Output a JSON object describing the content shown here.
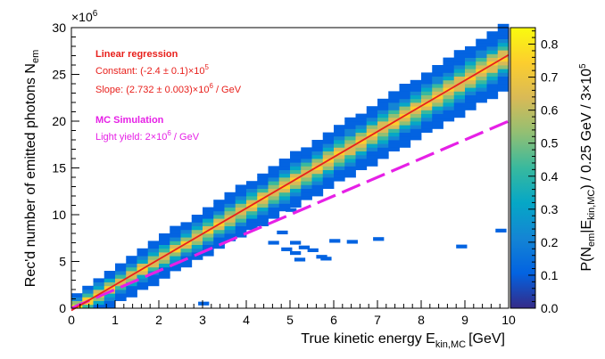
{
  "chart_data": {
    "type": "heatmap",
    "title": "",
    "xlabel": "True kinetic energy E",
    "xlabel_sub": "kin,MC",
    "xlabel_unit": "[GeV]",
    "ylabel": "Rec'd number of emitted photons N",
    "ylabel_sub": "em",
    "y_multiplier": "×10",
    "y_multiplier_exp": "6",
    "xlim": [
      0,
      10
    ],
    "ylim": [
      0,
      30
    ],
    "x_ticks": [
      "0",
      "1",
      "2",
      "3",
      "4",
      "5",
      "6",
      "7",
      "8",
      "9",
      "10"
    ],
    "y_ticks": [
      "0",
      "5",
      "10",
      "15",
      "20",
      "25",
      "30"
    ],
    "colorbar": {
      "label_main": "P(N",
      "label_sub1": "em",
      "label_mid": "|E",
      "label_sub2": "kin,MC",
      "label_tail": ") / 0.25 GeV / 3×10",
      "label_exp": "5",
      "range": [
        0,
        0.85
      ],
      "ticks": [
        "0.0",
        "0.1",
        "0.2",
        "0.3",
        "0.4",
        "0.5",
        "0.6",
        "0.7",
        "0.8"
      ],
      "colors": [
        "#352a87",
        "#0363e1",
        "#1485d4",
        "#06a7c6",
        "#38b99e",
        "#92bf73",
        "#d9ba56",
        "#fcce2e",
        "#f9fb0e"
      ]
    },
    "series": [
      {
        "name": "Linear regression",
        "type": "line",
        "color": "#e8201c",
        "intercept": -0.24,
        "slope": 2.732,
        "label_title": "Linear regression",
        "label_constant": "Constant:  (-2.4 ± 0.1)×10",
        "label_constant_exp": "5",
        "label_slope": "Slope:       (2.732 ± 0.003)×10",
        "label_slope_exp": "6",
        "label_slope_unit": " / GeV"
      },
      {
        "name": "MC Simulation",
        "type": "dashed-line",
        "color": "#e620e6",
        "intercept": 0,
        "slope": 2.0,
        "label_title": "MC Simulation",
        "label_yield": "Light yield: 2×10",
        "label_yield_exp": "6",
        "label_yield_unit": " / GeV"
      }
    ],
    "outliers": [
      [
        2.9,
        0.5
      ],
      [
        4.5,
        7.0
      ],
      [
        5.0,
        7.0
      ],
      [
        5.2,
        6.5
      ],
      [
        5.0,
        5.9
      ],
      [
        4.8,
        6.3
      ],
      [
        5.1,
        5.2
      ],
      [
        5.4,
        6.2
      ],
      [
        5.7,
        5.3
      ],
      [
        5.9,
        7.2
      ],
      [
        6.3,
        7.1
      ],
      [
        6.9,
        7.4
      ],
      [
        8.8,
        6.6
      ],
      [
        9.7,
        8.3
      ],
      [
        4.9,
        10.5
      ],
      [
        5.6,
        5.5
      ],
      [
        4.7,
        8.1
      ]
    ]
  }
}
